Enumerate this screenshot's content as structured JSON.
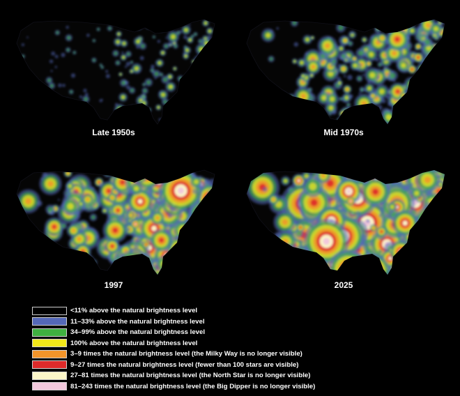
{
  "panels": [
    {
      "caption": "Late 1950s",
      "intensity": 1
    },
    {
      "caption": "Mid 1970s",
      "intensity": 2
    },
    {
      "caption": "1997",
      "intensity": 3
    },
    {
      "caption": "2025",
      "intensity": 4
    }
  ],
  "legend": [
    {
      "color": "#000000",
      "label": "<11% above the natural brightness level"
    },
    {
      "color": "#5468b8",
      "label": "11–33% above the natural brightness level"
    },
    {
      "color": "#3fb040",
      "label": "34–99% above the natural brightness level"
    },
    {
      "color": "#f2e81a",
      "label": "100% above the natural brightness level"
    },
    {
      "color": "#f2942a",
      "label": "3–9 times the natural brightness level (the Milky Way is no longer visible)"
    },
    {
      "color": "#de2a2a",
      "label": "9–27 times the natural brightness level (fewer than 100 stars are visible)"
    },
    {
      "color": "#fbf6c8",
      "label": "27–81 times the natural brightness level (the North Star is no longer visible)"
    },
    {
      "color": "#f2c8dc",
      "label": "81–243 times the natural brightness level (the Big Dipper is no longer visible)"
    }
  ]
}
